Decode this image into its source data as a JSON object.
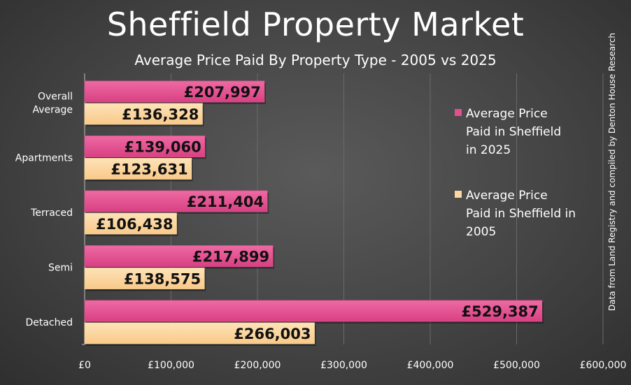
{
  "header": {
    "title": "Sheffield Property Market",
    "subtitle": "Average Price Paid By Property Type - 2005 vs 2025"
  },
  "source_note": "Data from Land Registry and compiled by Denton House Research",
  "colors": {
    "series_2025": "#e4508f",
    "series_2005": "#fcd7a0",
    "gridline": "#6a6a6a",
    "axis_text": "#ffffff"
  },
  "chart_data": {
    "type": "bar",
    "orientation": "horizontal",
    "title": "Sheffield Property Market",
    "subtitle": "Average Price Paid By Property Type - 2005 vs 2025",
    "categories": [
      "Overall Average",
      "Apartments",
      "Terraced",
      "Semi",
      "Detached"
    ],
    "category_label_lines": [
      [
        "Overall",
        "Average"
      ],
      [
        "Apartments"
      ],
      [
        "Terraced"
      ],
      [
        "Semi"
      ],
      [
        "Detached"
      ]
    ],
    "series": [
      {
        "name": "Average Price Paid in Sheffield in 2025",
        "legend_lines": [
          "Average Price",
          "Paid in Sheffield",
          "in 2025"
        ],
        "values": [
          207997,
          139060,
          211404,
          217899,
          529387
        ],
        "labels": [
          "£207,997",
          "£139,060",
          "£211,404",
          "£217,899",
          "£529,387"
        ]
      },
      {
        "name": "Average Price Paid in Sheffield in 2005",
        "legend_lines": [
          "Average Price",
          "Paid in Sheffield in",
          "2005"
        ],
        "values": [
          136328,
          123631,
          106438,
          138575,
          266003
        ],
        "labels": [
          "£136,328",
          "£123,631",
          "£106,438",
          "£138,575",
          "£266,003"
        ]
      }
    ],
    "xlim": [
      0,
      600000
    ],
    "x_ticks": [
      0,
      100000,
      200000,
      300000,
      400000,
      500000,
      600000
    ],
    "x_tick_labels": [
      "£0",
      "£100,000",
      "£200,000",
      "£300,000",
      "£400,000",
      "£500,000",
      "£600,000"
    ],
    "xlabel": "",
    "ylabel": "",
    "grid": true,
    "legend_position": "right"
  }
}
